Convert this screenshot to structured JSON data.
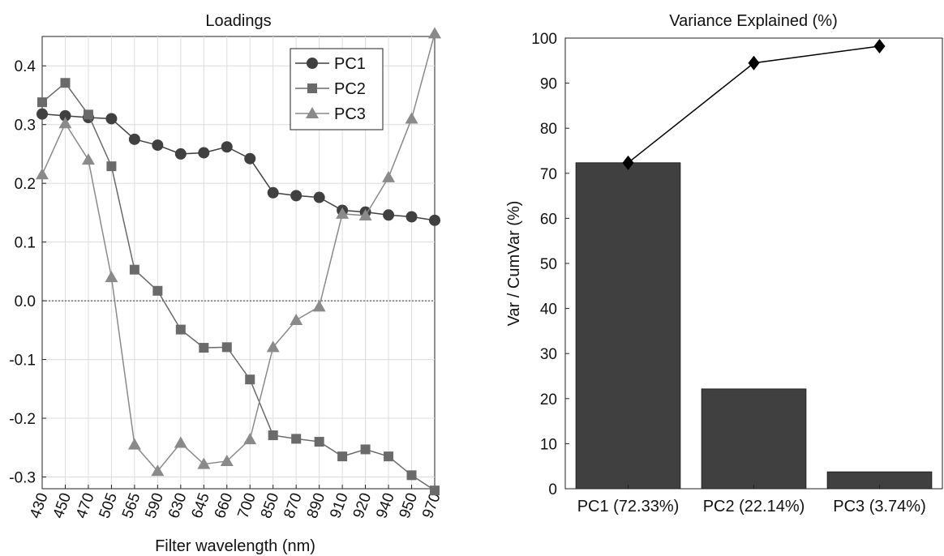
{
  "chart_data": [
    {
      "type": "line",
      "title": "Loadings",
      "xlabel": "Filter wavelength (nm)",
      "ylabel": "",
      "x": [
        "430",
        "450",
        "470",
        "505",
        "565",
        "590",
        "630",
        "645",
        "660",
        "700",
        "850",
        "870",
        "890",
        "910",
        "920",
        "940",
        "950",
        "970"
      ],
      "ylim": [
        -0.32,
        0.45
      ],
      "yticks": [
        "-0.3",
        "-0.2",
        "-0.1",
        "0.0",
        "0.1",
        "0.2",
        "0.3",
        "0.4"
      ],
      "grid": true,
      "zero_line": true,
      "legend_position": "top-right",
      "series": [
        {
          "name": "PC1",
          "marker": "circle",
          "color": "#404040",
          "values": [
            0.318,
            0.315,
            0.312,
            0.31,
            0.275,
            0.265,
            0.25,
            0.252,
            0.262,
            0.242,
            0.184,
            0.179,
            0.176,
            0.154,
            0.151,
            0.146,
            0.143,
            0.137
          ]
        },
        {
          "name": "PC2",
          "marker": "square",
          "color": "#6a6a6a",
          "values": [
            0.338,
            0.371,
            0.317,
            0.229,
            0.053,
            0.017,
            -0.049,
            -0.08,
            -0.079,
            -0.134,
            -0.229,
            -0.235,
            -0.24,
            -0.265,
            -0.253,
            -0.265,
            -0.297,
            -0.323
          ]
        },
        {
          "name": "PC3",
          "marker": "triangle",
          "color": "#8a8a8a",
          "values": [
            0.215,
            0.302,
            0.24,
            0.04,
            -0.245,
            -0.29,
            -0.242,
            -0.278,
            -0.273,
            -0.236,
            -0.079,
            -0.033,
            -0.01,
            0.148,
            0.145,
            0.21,
            0.31,
            0.455
          ]
        }
      ]
    },
    {
      "type": "bar",
      "title": "Variance Explained (%)",
      "xlabel": "",
      "ylabel": "Var / CumVar (%)",
      "categories": [
        "PC1 (72.33%)",
        "PC2 (22.14%)",
        "PC3 (3.74%)"
      ],
      "ylim": [
        0,
        100
      ],
      "yticks": [
        "0",
        "10",
        "20",
        "30",
        "40",
        "50",
        "60",
        "70",
        "80",
        "90",
        "100"
      ],
      "grid": false,
      "bar_color": "#404040",
      "series": [
        {
          "type": "bar",
          "values": [
            72.33,
            22.14,
            3.74
          ]
        },
        {
          "type": "line",
          "marker": "diamond",
          "values": [
            72.33,
            94.47,
            98.21
          ]
        }
      ]
    }
  ]
}
